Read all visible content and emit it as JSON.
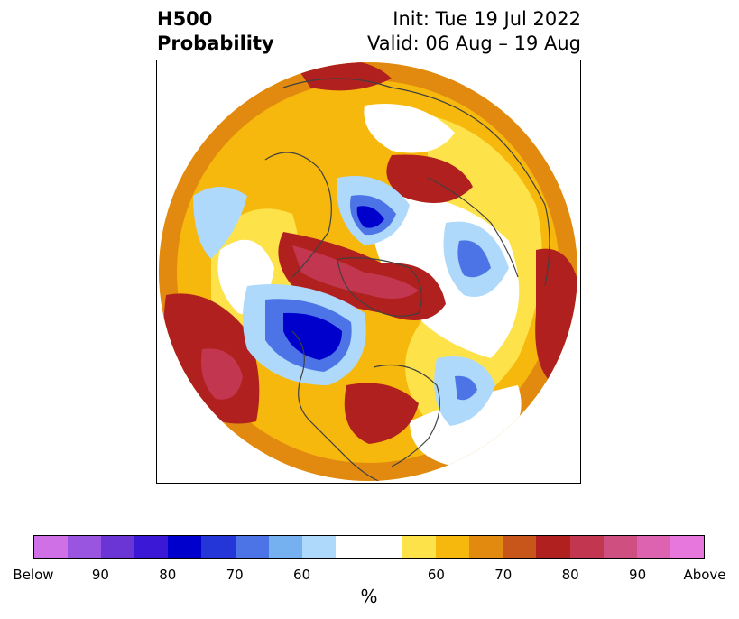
{
  "title": {
    "left_line1": "H500",
    "left_line2": "Probability",
    "right_line1": "Init: Tue 19 Jul 2022",
    "right_line2": "Valid: 06 Aug – 19 Aug"
  },
  "colorbar": {
    "unit": "%",
    "colors": [
      "#d070e6",
      "#9a55e0",
      "#6b35d6",
      "#3a18d6",
      "#0000cc",
      "#2436d8",
      "#4d74e6",
      "#75b0f0",
      "#aed9fa",
      "#ffffff",
      "#ffffff",
      "#fde24a",
      "#f6b80c",
      "#e28a10",
      "#c8561a",
      "#b0201e",
      "#c33650",
      "#cf4f80",
      "#dd62b0",
      "#e777dd"
    ],
    "labels": [
      "Below",
      "90",
      "80",
      "70",
      "60",
      "60",
      "70",
      "80",
      "90",
      "Above"
    ]
  },
  "map": {
    "colors": {
      "ocean_base": "#f6b80c",
      "outer_ring": "#e28a10",
      "blue_light": "#aed9fa",
      "blue_mid": "#4d74e6",
      "blue_deep": "#0000cc",
      "red_dark": "#b0201e",
      "red_light": "#c33650",
      "yellow": "#fde24a",
      "coast": "#404040"
    }
  }
}
